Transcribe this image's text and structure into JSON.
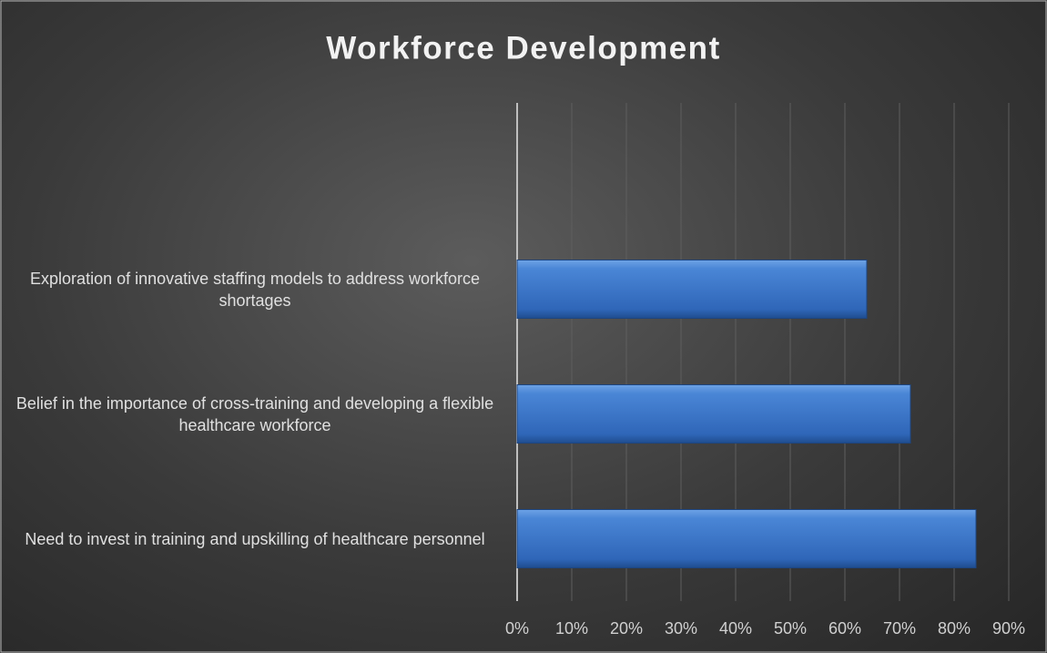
{
  "chart_data": {
    "type": "hbar",
    "title": "Workforce Development",
    "categories": [
      "Exploration of innovative staffing models to address workforce shortages",
      "Belief in the importance of cross-training and developing a flexible healthcare workforce",
      "Need to invest in training and upskilling of healthcare personnel"
    ],
    "values": [
      64,
      72,
      84
    ],
    "color": "#3f7bd0",
    "xlim": [
      0,
      90
    ],
    "xticks": [
      {
        "value": 0,
        "label": "0%"
      },
      {
        "value": 10,
        "label": "10%"
      },
      {
        "value": 20,
        "label": "20%"
      },
      {
        "value": 30,
        "label": "30%"
      },
      {
        "value": 40,
        "label": "40%"
      },
      {
        "value": 50,
        "label": "50%"
      },
      {
        "value": 60,
        "label": "60%"
      },
      {
        "value": 70,
        "label": "70%"
      },
      {
        "value": 80,
        "label": "80%"
      },
      {
        "value": 90,
        "label": "90%"
      }
    ],
    "grid": true
  }
}
